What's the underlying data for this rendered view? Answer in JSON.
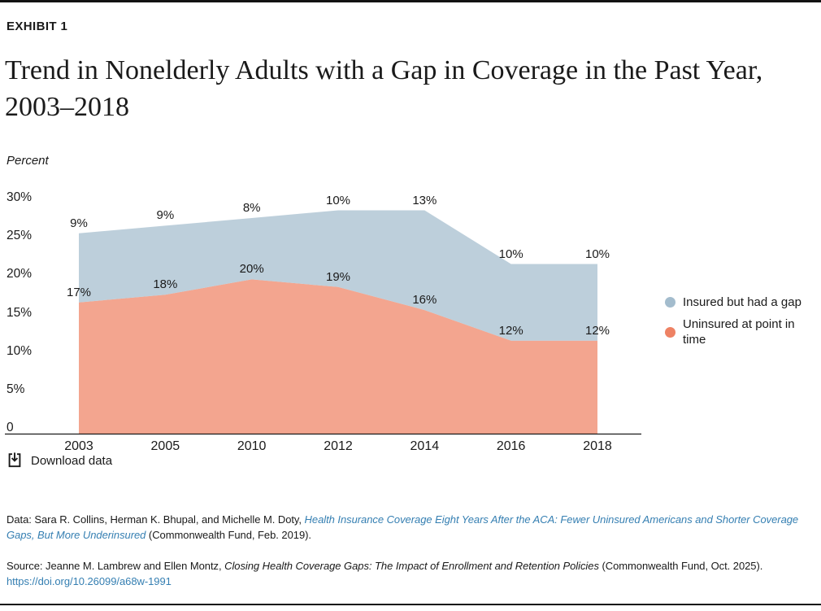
{
  "page": {
    "exhibit_label": "EXHIBIT 1",
    "title": "Trend in Nonelderly Adults with a Gap in Coverage in the Past Year, 2003–2018",
    "download_label": "Download data"
  },
  "chart_data": {
    "type": "area",
    "stacked": true,
    "unit": "%",
    "title": "Trend in Nonelderly Adults with a Gap in Coverage in the Past Year, 2003–2018",
    "ylabel": "Percent",
    "xlabel": "",
    "ylim": [
      0,
      30
    ],
    "grid": false,
    "legend_position": "right",
    "categories": [
      "2003",
      "2005",
      "2010",
      "2012",
      "2014",
      "2016",
      "2018"
    ],
    "yticks": [
      "30%",
      "25%",
      "20%",
      "15%",
      "10%",
      "5%",
      "0"
    ],
    "series": [
      {
        "name": "Uninsured at point in time",
        "color": "#ee8264",
        "values": [
          17,
          18,
          20,
          19,
          16,
          12,
          12
        ]
      },
      {
        "name": "Insured but had a gap",
        "color": "#a3bccd",
        "values": [
          9,
          9,
          8,
          10,
          13,
          10,
          10
        ]
      }
    ],
    "legend": [
      {
        "label": "Insured but had a gap",
        "color": "#a3bccd"
      },
      {
        "label": "Uninsured at point in time",
        "color": "#ee8264"
      }
    ]
  },
  "footnotes": {
    "data_note": [
      {
        "text": "Data: Sara R. Collins, Herman K. Bhupal, and Michelle M. Doty, ",
        "style": "plain"
      },
      {
        "text": "Health Insurance Coverage Eight Years After the ACA: Fewer Uninsured Americans and Shorter Coverage Gaps, But More Underinsured",
        "style": "link-italic"
      },
      {
        "text": " (Commonwealth Fund, Feb. 2019).",
        "style": "plain"
      }
    ],
    "source_note": [
      {
        "text": "Source: Jeanne M. Lambrew and Ellen Montz, ",
        "style": "plain"
      },
      {
        "text": "Closing Health Coverage Gaps: The Impact of Enrollment and Retention Policies",
        "style": "italic"
      },
      {
        "text": " (Commonwealth Fund, Oct. 2025). ",
        "style": "plain"
      },
      {
        "text": "https://doi.org/10.26099/a68w-1991",
        "style": "link"
      }
    ]
  },
  "colors": {
    "text": "#1a1a1a",
    "link": "#357fb2",
    "axis": "#1a1a1a",
    "top_bar": "#121212"
  }
}
